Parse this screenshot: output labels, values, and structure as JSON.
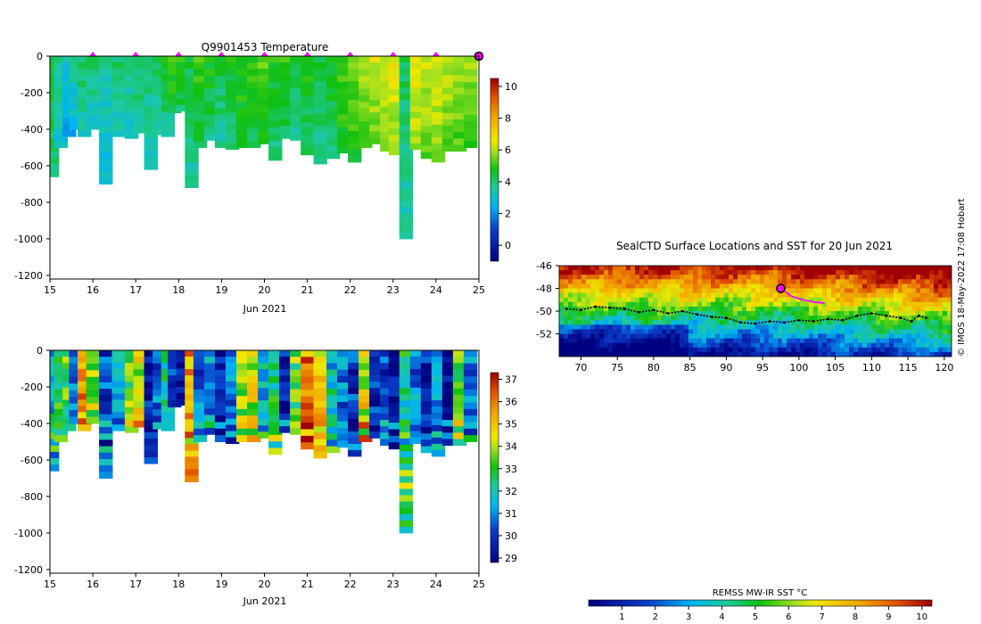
{
  "chart_data": [
    {
      "type": "heatmap",
      "title": "Q9901453  Temperature",
      "xlabel": "Jun 2021",
      "ylabel": "",
      "xlim": [
        15,
        25
      ],
      "ylim": [
        -1220,
        0
      ],
      "x_ticks": [
        "15",
        "16",
        "17",
        "18",
        "19",
        "20",
        "21",
        "22",
        "23",
        "24",
        "25"
      ],
      "y_ticks": [
        "0",
        "-200",
        "-400",
        "-600",
        "-800",
        "-1000",
        "-1200"
      ],
      "surface_markers_days": [
        16,
        17,
        18,
        19,
        20,
        21,
        22,
        23,
        24
      ],
      "current_marker_day": 25,
      "colorbar": {
        "min": -1,
        "max": 10.5,
        "ticks": [
          "0",
          "2",
          "4",
          "6",
          "8",
          "10"
        ]
      },
      "profiles": [
        {
          "day": 15.05,
          "depth": 660,
          "t": 4.6
        },
        {
          "day": 15.25,
          "depth": 500,
          "t": 3.8
        },
        {
          "day": 15.45,
          "depth": 440,
          "t": 3.2
        },
        {
          "day": 15.6,
          "depth": 400,
          "t": 3.6
        },
        {
          "day": 15.8,
          "depth": 440,
          "t": 4.2
        },
        {
          "day": 16.0,
          "depth": 400,
          "t": 4.0
        },
        {
          "day": 16.3,
          "depth": 700,
          "t": 3.6
        },
        {
          "day": 16.6,
          "depth": 440,
          "t": 4.1
        },
        {
          "day": 16.9,
          "depth": 450,
          "t": 3.9
        },
        {
          "day": 17.1,
          "depth": 420,
          "t": 4.3
        },
        {
          "day": 17.35,
          "depth": 620,
          "t": 4.0
        },
        {
          "day": 17.55,
          "depth": 430,
          "t": 4.2
        },
        {
          "day": 17.75,
          "depth": 440,
          "t": 4.6
        },
        {
          "day": 17.9,
          "depth": 310,
          "t": 5.2
        },
        {
          "day": 18.1,
          "depth": 300,
          "t": 5.0
        },
        {
          "day": 18.3,
          "depth": 720,
          "t": 4.4
        },
        {
          "day": 18.5,
          "depth": 500,
          "t": 5.0
        },
        {
          "day": 18.75,
          "depth": 460,
          "t": 4.8
        },
        {
          "day": 19.0,
          "depth": 500,
          "t": 4.4
        },
        {
          "day": 19.25,
          "depth": 510,
          "t": 4.6
        },
        {
          "day": 19.5,
          "depth": 500,
          "t": 5.1
        },
        {
          "day": 19.75,
          "depth": 500,
          "t": 5.0
        },
        {
          "day": 20.0,
          "depth": 480,
          "t": 5.4
        },
        {
          "day": 20.25,
          "depth": 570,
          "t": 4.8
        },
        {
          "day": 20.5,
          "depth": 450,
          "t": 5.0
        },
        {
          "day": 20.75,
          "depth": 460,
          "t": 4.6
        },
        {
          "day": 21.0,
          "depth": 540,
          "t": 4.8
        },
        {
          "day": 21.3,
          "depth": 590,
          "t": 4.5
        },
        {
          "day": 21.6,
          "depth": 560,
          "t": 4.8
        },
        {
          "day": 21.85,
          "depth": 530,
          "t": 5.3
        },
        {
          "day": 22.1,
          "depth": 580,
          "t": 5.5
        },
        {
          "day": 22.35,
          "depth": 500,
          "t": 6.0
        },
        {
          "day": 22.6,
          "depth": 480,
          "t": 6.3
        },
        {
          "day": 22.85,
          "depth": 520,
          "t": 6.4
        },
        {
          "day": 23.05,
          "depth": 540,
          "t": 6.6
        },
        {
          "day": 23.3,
          "depth": 1000,
          "t": 4.2
        },
        {
          "day": 23.55,
          "depth": 510,
          "t": 6.7
        },
        {
          "day": 23.8,
          "depth": 560,
          "t": 6.3
        },
        {
          "day": 24.05,
          "depth": 580,
          "t": 6.5
        },
        {
          "day": 24.3,
          "depth": 520,
          "t": 6.2
        },
        {
          "day": 24.55,
          "depth": 520,
          "t": 6.0
        },
        {
          "day": 24.8,
          "depth": 500,
          "t": 5.8
        }
      ]
    },
    {
      "type": "heatmap",
      "title": "",
      "xlabel": "Jun 2021",
      "ylabel": "",
      "xlim": [
        15,
        25
      ],
      "ylim": [
        -1220,
        0
      ],
      "x_ticks": [
        "15",
        "16",
        "17",
        "18",
        "19",
        "20",
        "21",
        "22",
        "23",
        "24",
        "25"
      ],
      "y_ticks": [
        "0",
        "-200",
        "-400",
        "-600",
        "-800",
        "-1000",
        "-1200"
      ],
      "colorbar": {
        "min": 28.8,
        "max": 37.3,
        "ticks": [
          "29",
          "30",
          "31",
          "32",
          "33",
          "34",
          "35",
          "36",
          "37"
        ]
      },
      "profiles": [
        {
          "day": 15.05,
          "depth": 660,
          "s": 31.8
        },
        {
          "day": 15.25,
          "depth": 500,
          "s": 32.6
        },
        {
          "day": 15.45,
          "depth": 440,
          "s": 33.2
        },
        {
          "day": 15.6,
          "depth": 400,
          "s": 31.2
        },
        {
          "day": 15.8,
          "depth": 440,
          "s": 35.6
        },
        {
          "day": 16.0,
          "depth": 400,
          "s": 33.8
        },
        {
          "day": 16.3,
          "depth": 700,
          "s": 30.2
        },
        {
          "day": 16.6,
          "depth": 440,
          "s": 31.0
        },
        {
          "day": 16.9,
          "depth": 450,
          "s": 33.5
        },
        {
          "day": 17.1,
          "depth": 420,
          "s": 34.2
        },
        {
          "day": 17.35,
          "depth": 620,
          "s": 29.4
        },
        {
          "day": 17.55,
          "depth": 430,
          "s": 30.5
        },
        {
          "day": 17.75,
          "depth": 440,
          "s": 32.0
        },
        {
          "day": 17.9,
          "depth": 310,
          "s": 30.0
        },
        {
          "day": 18.1,
          "depth": 300,
          "s": 29.1
        },
        {
          "day": 18.3,
          "depth": 720,
          "s": 35.4
        },
        {
          "day": 18.5,
          "depth": 500,
          "s": 30.4
        },
        {
          "day": 18.75,
          "depth": 460,
          "s": 31.0
        },
        {
          "day": 19.0,
          "depth": 500,
          "s": 29.3
        },
        {
          "day": 19.25,
          "depth": 510,
          "s": 30.6
        },
        {
          "day": 19.5,
          "depth": 500,
          "s": 33.6
        },
        {
          "day": 19.75,
          "depth": 500,
          "s": 34.2
        },
        {
          "day": 20.0,
          "depth": 480,
          "s": 31.4
        },
        {
          "day": 20.25,
          "depth": 570,
          "s": 32.8
        },
        {
          "day": 20.5,
          "depth": 450,
          "s": 29.6
        },
        {
          "day": 20.75,
          "depth": 460,
          "s": 33.2
        },
        {
          "day": 21.0,
          "depth": 540,
          "s": 35.8
        },
        {
          "day": 21.3,
          "depth": 590,
          "s": 34.8
        },
        {
          "day": 21.6,
          "depth": 560,
          "s": 31.8
        },
        {
          "day": 21.85,
          "depth": 530,
          "s": 30.6
        },
        {
          "day": 22.1,
          "depth": 580,
          "s": 30.0
        },
        {
          "day": 22.35,
          "depth": 500,
          "s": 34.4
        },
        {
          "day": 22.6,
          "depth": 480,
          "s": 29.8
        },
        {
          "day": 22.85,
          "depth": 520,
          "s": 30.2
        },
        {
          "day": 23.05,
          "depth": 540,
          "s": 29.4
        },
        {
          "day": 23.3,
          "depth": 1000,
          "s": 32.4
        },
        {
          "day": 23.55,
          "depth": 510,
          "s": 30.8
        },
        {
          "day": 23.8,
          "depth": 560,
          "s": 29.5
        },
        {
          "day": 24.05,
          "depth": 580,
          "s": 31.0
        },
        {
          "day": 24.3,
          "depth": 520,
          "s": 29.2
        },
        {
          "day": 24.55,
          "depth": 520,
          "s": 33.0
        },
        {
          "day": 24.8,
          "depth": 500,
          "s": 30.8
        }
      ]
    },
    {
      "type": "heatmap",
      "title": "SealCTD Surface Locations and SST for 20 Jun 2021",
      "xlabel": "",
      "ylabel": "",
      "xlim": [
        67,
        121
      ],
      "ylim": [
        -54,
        -46
      ],
      "x_ticks": [
        "70",
        "75",
        "80",
        "85",
        "90",
        "95",
        "100",
        "105",
        "110",
        "115",
        "120"
      ],
      "y_ticks": [
        "-46",
        "-48",
        "-50",
        "-52"
      ],
      "track": [
        [
          68,
          -49.8
        ],
        [
          70,
          -49.9
        ],
        [
          72,
          -49.6
        ],
        [
          74,
          -49.7
        ],
        [
          76,
          -49.8
        ],
        [
          78,
          -50.1
        ],
        [
          80,
          -49.9
        ],
        [
          82,
          -50.2
        ],
        [
          84,
          -50.0
        ],
        [
          86,
          -50.3
        ],
        [
          88,
          -50.5
        ],
        [
          90,
          -50.6
        ],
        [
          92,
          -51.0
        ],
        [
          94,
          -51.1
        ],
        [
          96,
          -50.9
        ],
        [
          98,
          -51.0
        ],
        [
          100,
          -50.8
        ],
        [
          102,
          -50.9
        ],
        [
          104,
          -50.7
        ],
        [
          106,
          -50.8
        ],
        [
          108,
          -50.4
        ],
        [
          110,
          -50.2
        ],
        [
          112,
          -50.4
        ],
        [
          114,
          -50.6
        ],
        [
          115.5,
          -50.9
        ],
        [
          116.5,
          -50.4
        ],
        [
          117.5,
          -50.6
        ]
      ],
      "recent_track": [
        [
          97.5,
          -48.0
        ],
        [
          99,
          -48.7
        ],
        [
          100.5,
          -49.0
        ],
        [
          102,
          -49.2
        ],
        [
          103.5,
          -49.3
        ]
      ],
      "current_position": [
        97.5,
        -48.0
      ],
      "attribution": "© IMOS 18-May-2022 17:08 Hobart",
      "colorbar": {
        "label": "REMSS MW-IR SST °C",
        "min": 0,
        "max": 10.3,
        "ticks": [
          "1",
          "2",
          "3",
          "4",
          "5",
          "6",
          "7",
          "8",
          "9",
          "10"
        ]
      }
    }
  ]
}
